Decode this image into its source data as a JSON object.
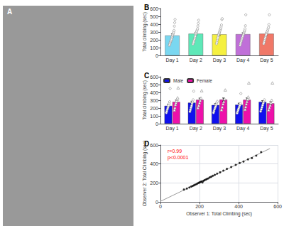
{
  "chart_data": [
    {
      "type": "image",
      "title": "A",
      "color": "#999999"
    },
    {
      "type": "bar",
      "title": "B",
      "categories": [
        "Day 1",
        "Day 2",
        "Day 3",
        "Day 4",
        "Day 5"
      ],
      "values": [
        255,
        278,
        270,
        272,
        278
      ],
      "errors": [
        20,
        18,
        16,
        18,
        15
      ],
      "colors": [
        "#7AD7F0",
        "#5EE8B8",
        "#F5F040",
        "#C070D8",
        "#F07868"
      ],
      "points": [
        [
          130,
          145,
          160,
          175,
          185,
          195,
          210,
          225,
          240,
          255,
          270,
          285,
          300,
          320,
          375,
          420,
          460
        ],
        [
          145,
          160,
          175,
          195,
          210,
          225,
          245,
          265,
          280,
          295,
          310,
          325,
          340,
          375,
          410,
          450
        ],
        [
          150,
          170,
          195,
          215,
          235,
          255,
          270,
          285,
          300,
          315,
          330,
          345,
          365,
          390,
          460,
          470
        ],
        [
          130,
          150,
          168,
          185,
          200,
          215,
          230,
          245,
          260,
          275,
          290,
          305,
          318,
          340,
          380,
          520
        ],
        [
          150,
          170,
          195,
          215,
          235,
          255,
          270,
          290,
          305,
          320,
          340,
          360,
          395,
          520
        ]
      ],
      "marker": "circle",
      "ylabel": "Total climbing (sec)",
      "ylim": [
        0,
        600
      ],
      "yticks": [
        0,
        100,
        200,
        300,
        400,
        500,
        600
      ],
      "grid": false
    },
    {
      "type": "bar",
      "title": "C",
      "categories": [
        "Day 1",
        "Day 2",
        "Day 3",
        "Day 4",
        "Day 5"
      ],
      "series": [
        {
          "name": "Male",
          "color": "#1010EE",
          "marker": "circle",
          "values": [
            228,
            268,
            238,
            242,
            278
          ],
          "errors": [
            22,
            20,
            18,
            20,
            16
          ],
          "points": [
            [
              140,
              160,
              180,
              200,
              215,
              235,
              255,
              280,
              450
            ],
            [
              155,
              178,
              205,
              228,
              255,
              278,
              305,
              415
            ],
            [
              140,
              162,
              185,
              205,
              222,
              242,
              268,
              285
            ],
            [
              135,
              155,
              175,
              195,
              215,
              235,
              258,
              385
            ],
            [
              158,
              182,
              208,
              235,
              260,
              282,
              305
            ]
          ]
        },
        {
          "name": "Female",
          "color": "#EE10AA",
          "marker": "triangle",
          "values": [
            278,
            305,
            308,
            305,
            260
          ],
          "errors": [
            24,
            22,
            20,
            24,
            20
          ],
          "points": [
            [
              170,
              200,
              240,
              262,
              285,
              308,
              328,
              455
            ],
            [
              198,
              228,
              262,
              292,
              325,
              418
            ],
            [
              175,
              208,
              248,
              278,
              312,
              428
            ],
            [
              178,
              212,
              248,
              278,
              308,
              338,
              518
            ],
            [
              172,
              202,
              232,
              262,
              298,
              518
            ]
          ]
        }
      ],
      "ylabel": "Total climbing (sec)",
      "ylim": [
        0,
        600
      ],
      "yticks": [
        0,
        100,
        200,
        300,
        400,
        500,
        600
      ],
      "legend": "upper left",
      "grid": false
    },
    {
      "type": "scatter",
      "title": "D",
      "series": [
        {
          "type": "scatter",
          "color": "#000000",
          "marker": "circle",
          "x": [
            120,
            135,
            148,
            158,
            165,
            172,
            178,
            185,
            190,
            196,
            200,
            205,
            210,
            215,
            220,
            225,
            232,
            238,
            245,
            252,
            260,
            268,
            278,
            290,
            305,
            322,
            340,
            362,
            385,
            405,
            425,
            448,
            468,
            490,
            515
          ],
          "values": [
            130,
            140,
            152,
            162,
            168,
            175,
            182,
            188,
            195,
            200,
            205,
            210,
            215,
            205,
            222,
            228,
            235,
            242,
            248,
            258,
            265,
            275,
            285,
            298,
            312,
            330,
            348,
            368,
            390,
            410,
            425,
            448,
            462,
            488,
            525
          ]
        },
        {
          "type": "line",
          "color": "#999999",
          "line_style": "solid",
          "x": [
            0,
            560
          ],
          "values": [
            5.4339,
            562.4006
          ]
        }
      ],
      "annotations": [
        {
          "text": "r=0.99",
          "color": "red"
        },
        {
          "text": "p<0.0001",
          "color": "red"
        }
      ],
      "xlabel": "Observer 1: Total Climbing (sec)",
      "ylabel": "Observer 2: Total Climbing (sec)",
      "xlim": [
        0,
        600
      ],
      "xticks": [
        0,
        200,
        400,
        600
      ],
      "ylim": [
        0,
        600
      ],
      "yticks": [
        0,
        200,
        400,
        600
      ],
      "grid": true
    }
  ]
}
